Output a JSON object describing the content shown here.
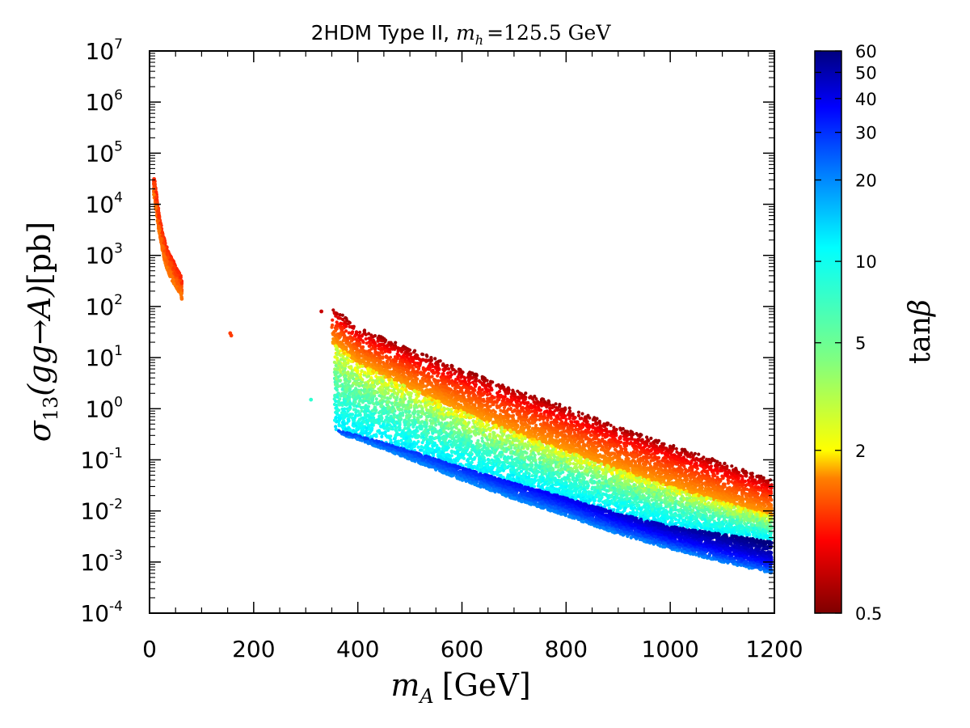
{
  "chart_data": {
    "type": "scatter",
    "title": "2HDM Type II, m_h = 125.5 GeV",
    "title_parts": {
      "prefix": "2HDM Type II,",
      "mh_symbol": "m",
      "mh_sub": "h",
      "mh_value": "=125.5 GeV"
    },
    "xlabel": "m_A [GeV]",
    "xlabel_parts": {
      "symbol": "m",
      "sub": "A",
      "unit": "[GeV]"
    },
    "ylabel": "σ13(gg→A)[pb]",
    "ylabel_parts": {
      "symbol": "σ",
      "sub": "13",
      "process": "(gg→A)",
      "unit": "[pb]"
    },
    "xlim": [
      0,
      1200
    ],
    "ylim_log10": [
      -4,
      7
    ],
    "yscale": "log",
    "x_ticks": [
      {
        "value": 0,
        "label": "0"
      },
      {
        "value": 200,
        "label": "200"
      },
      {
        "value": 400,
        "label": "400"
      },
      {
        "value": 600,
        "label": "600"
      },
      {
        "value": 800,
        "label": "800"
      },
      {
        "value": 1000,
        "label": "1000"
      },
      {
        "value": 1200,
        "label": "1200"
      }
    ],
    "y_ticks": [
      {
        "exp": -4,
        "base": "10",
        "sup": "-4"
      },
      {
        "exp": -3,
        "base": "10",
        "sup": "-3"
      },
      {
        "exp": -2,
        "base": "10",
        "sup": "-2"
      },
      {
        "exp": -1,
        "base": "10",
        "sup": "-1"
      },
      {
        "exp": 0,
        "base": "10",
        "sup": "0"
      },
      {
        "exp": 1,
        "base": "10",
        "sup": "1"
      },
      {
        "exp": 2,
        "base": "10",
        "sup": "2"
      },
      {
        "exp": 3,
        "base": "10",
        "sup": "3"
      },
      {
        "exp": 4,
        "base": "10",
        "sup": "4"
      },
      {
        "exp": 5,
        "base": "10",
        "sup": "5"
      },
      {
        "exp": 6,
        "base": "10",
        "sup": "6"
      },
      {
        "exp": 7,
        "base": "10",
        "sup": "7"
      }
    ],
    "colorbar": {
      "label": "tanβ",
      "label_parts": {
        "fn": "tan",
        "symbol": "β"
      },
      "scale": "log",
      "range": [
        0.5,
        60
      ],
      "ticks": [
        {
          "value": 0.5,
          "label": "0.5"
        },
        {
          "value": 2,
          "label": "2"
        },
        {
          "value": 5,
          "label": "5"
        },
        {
          "value": 10,
          "label": "10"
        },
        {
          "value": 20,
          "label": "20"
        },
        {
          "value": 30,
          "label": "30"
        },
        {
          "value": 40,
          "label": "40"
        },
        {
          "value": 50,
          "label": "50"
        },
        {
          "value": 60,
          "label": "60"
        }
      ],
      "colormap": "jet",
      "colormap_stops": [
        "#7f0000",
        "#ff0000",
        "#ff7f00",
        "#ffff00",
        "#7fff7f",
        "#00ffff",
        "#007fff",
        "#0000ff",
        "#00007f"
      ]
    },
    "series": [
      {
        "name": "low-mass branch",
        "tanb_range": [
          1.0,
          1.6
        ],
        "x": [
          8,
          10,
          12,
          15,
          18,
          22,
          26,
          30,
          35,
          40,
          45,
          50,
          55,
          60,
          62
        ],
        "y_upper": [
          35000,
          30000,
          20000,
          12000,
          7000,
          4000,
          2500,
          1800,
          1300,
          1000,
          800,
          600,
          500,
          400,
          300
        ],
        "y_lower": [
          15000,
          12000,
          8000,
          5000,
          3000,
          1800,
          1100,
          700,
          500,
          380,
          300,
          250,
          200,
          180,
          130
        ]
      },
      {
        "name": "isolated points",
        "x": [
          155,
          157,
          310,
          330
        ],
        "y": [
          30,
          27,
          1.5,
          80
        ],
        "tanb": [
          1.2,
          1.2,
          8,
          0.7
        ]
      },
      {
        "name": "main branch",
        "x": [
          350,
          400,
          500,
          600,
          700,
          800,
          900,
          1000,
          1100,
          1195
        ],
        "y_red_upper": [
          100,
          40,
          15,
          6,
          2.5,
          1.1,
          0.45,
          0.2,
          0.09,
          0.04
        ],
        "y_yellow": [
          20,
          8,
          2.5,
          0.9,
          0.35,
          0.15,
          0.065,
          0.03,
          0.015,
          0.008
        ],
        "y_green_lower": [
          0.4,
          0.3,
          0.15,
          0.07,
          0.035,
          0.018,
          0.009,
          0.005,
          0.0035,
          0.0025
        ],
        "y_cyan_lower": [
          0.35,
          0.25,
          0.1,
          0.04,
          0.017,
          0.008,
          0.0035,
          0.0018,
          0.001,
          0.0006
        ]
      }
    ]
  }
}
